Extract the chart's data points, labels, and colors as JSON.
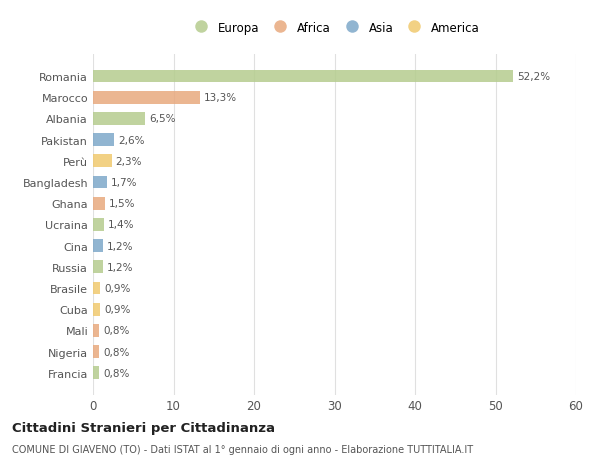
{
  "countries": [
    "Romania",
    "Marocco",
    "Albania",
    "Pakistan",
    "Perù",
    "Bangladesh",
    "Ghana",
    "Ucraina",
    "Cina",
    "Russia",
    "Brasile",
    "Cuba",
    "Mali",
    "Nigeria",
    "Francia"
  ],
  "values": [
    52.2,
    13.3,
    6.5,
    2.6,
    2.3,
    1.7,
    1.5,
    1.4,
    1.2,
    1.2,
    0.9,
    0.9,
    0.8,
    0.8,
    0.8
  ],
  "labels": [
    "52,2%",
    "13,3%",
    "6,5%",
    "2,6%",
    "2,3%",
    "1,7%",
    "1,5%",
    "1,4%",
    "1,2%",
    "1,2%",
    "0,9%",
    "0,9%",
    "0,8%",
    "0,8%",
    "0,8%"
  ],
  "continents": [
    "Europa",
    "Africa",
    "Europa",
    "Asia",
    "America",
    "Asia",
    "Africa",
    "Europa",
    "Asia",
    "Europa",
    "America",
    "America",
    "Africa",
    "Africa",
    "Europa"
  ],
  "continent_colors": {
    "Europa": "#b5cc8e",
    "Africa": "#e8a97e",
    "Asia": "#7ea8c9",
    "America": "#f0c96e"
  },
  "legend_order": [
    "Europa",
    "Africa",
    "Asia",
    "America"
  ],
  "legend_colors": [
    "#b5cc8e",
    "#e8a97e",
    "#7ea8c9",
    "#f0c96e"
  ],
  "xlim": [
    0,
    60
  ],
  "xticks": [
    0,
    10,
    20,
    30,
    40,
    50,
    60
  ],
  "title": "Cittadini Stranieri per Cittadinanza",
  "subtitle": "COMUNE DI GIAVENO (TO) - Dati ISTAT al 1° gennaio di ogni anno - Elaborazione TUTTITALIA.IT",
  "background_color": "#ffffff",
  "grid_color": "#e0e0e0",
  "bar_height": 0.6
}
